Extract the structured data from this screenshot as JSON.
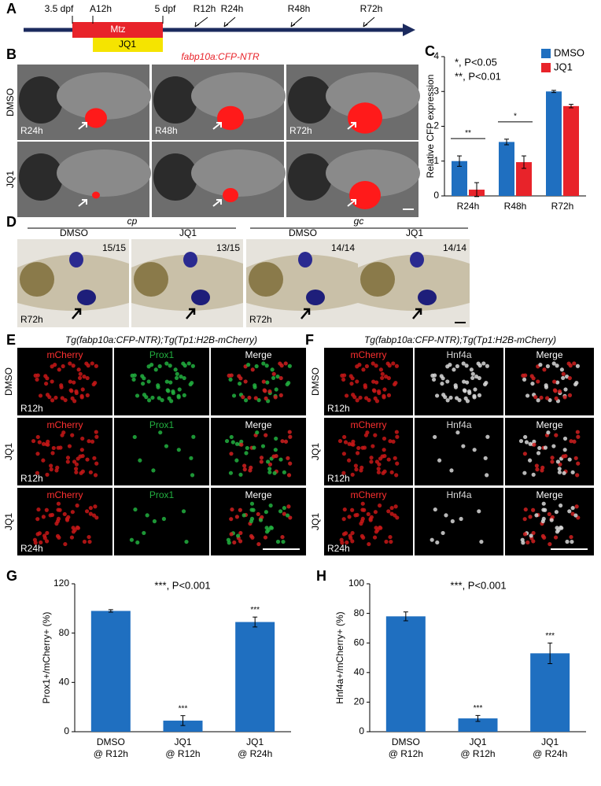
{
  "panel_letters": [
    "A",
    "B",
    "C",
    "D",
    "E",
    "F",
    "G",
    "H"
  ],
  "timeline": {
    "labels": [
      "3.5 dpf",
      "A12h",
      "5 dpf",
      "R12h",
      "R24h",
      "R48h",
      "R72h"
    ],
    "treatments": [
      "Mtz",
      "JQ1"
    ]
  },
  "panel_b": {
    "title": "fabp10a:CFP-NTR",
    "rows": [
      "DMSO",
      "JQ1"
    ],
    "times": [
      "R24h",
      "R48h",
      "R72h"
    ]
  },
  "panel_d": {
    "genes": [
      "cp",
      "gc"
    ],
    "conditions": [
      "DMSO",
      "JQ1",
      "DMSO",
      "JQ1"
    ],
    "counts": [
      "15/15",
      "13/15",
      "14/14",
      "14/14"
    ],
    "time": "R72h"
  },
  "panel_e": {
    "title": "Tg(fabp10a:CFP-NTR);Tg(Tp1:H2B-mCherry)",
    "channels": [
      "mCherry",
      "Prox1",
      "Merge"
    ],
    "rows": [
      "DMSO",
      "JQ1",
      "JQ1"
    ],
    "times": [
      "R12h",
      "R12h",
      "R24h"
    ]
  },
  "panel_f": {
    "title": "Tg(fabp10a:CFP-NTR);Tg(Tp1:H2B-mCherry)",
    "channels": [
      "mCherry",
      "Hnf4a",
      "Merge"
    ],
    "rows": [
      "DMSO",
      "JQ1",
      "JQ1"
    ],
    "times": [
      "R12h",
      "R12h",
      "R24h"
    ]
  },
  "chart_data": [
    {
      "type": "bar",
      "ylabel": "Relative CFP expression",
      "categories": [
        "R24h",
        "R48h",
        "R72h"
      ],
      "series": [
        {
          "name": "DMSO",
          "color": "#1f6fc0",
          "values": [
            1.0,
            1.55,
            3.0
          ],
          "errors": [
            0.15,
            0.08,
            0.03
          ]
        },
        {
          "name": "JQ1",
          "color": "#e8232a",
          "values": [
            0.18,
            0.97,
            2.58
          ],
          "errors": [
            0.2,
            0.18,
            0.05
          ]
        }
      ],
      "significance": [
        "**",
        "*",
        null
      ],
      "annotations": [
        "*, P<0.05",
        "**, P<0.01"
      ],
      "ylim": [
        0,
        4
      ],
      "yticks": [
        0,
        1,
        2,
        3,
        4
      ],
      "legend": "top-right"
    },
    {
      "type": "bar",
      "ylabel": "Prox1+/mCherry+ (%)",
      "categories": [
        [
          "DMSO",
          "@ R12h"
        ],
        [
          "JQ1",
          "@ R12h"
        ],
        [
          "JQ1",
          "@ R24h"
        ]
      ],
      "series": [
        {
          "color": "#1f6fc0",
          "values": [
            98,
            9,
            89
          ],
          "errors": [
            1,
            4,
            4
          ]
        }
      ],
      "value_labels": [
        null,
        "***",
        "***"
      ],
      "annotations": [
        "***, P<0.001"
      ],
      "ylim": [
        0,
        120
      ],
      "yticks": [
        0,
        40,
        80,
        120
      ]
    },
    {
      "type": "bar",
      "ylabel": "Hnf4a+/mCherry+ (%)",
      "categories": [
        [
          "DMSO",
          "@ R12h"
        ],
        [
          "JQ1",
          "@ R12h"
        ],
        [
          "JQ1",
          "@ R24h"
        ]
      ],
      "series": [
        {
          "color": "#1f6fc0",
          "values": [
            78,
            9,
            53
          ],
          "errors": [
            3,
            2,
            7
          ]
        }
      ],
      "value_labels": [
        null,
        "***",
        "***"
      ],
      "annotations": [
        "***, P<0.001"
      ],
      "ylim": [
        0,
        100
      ],
      "yticks": [
        0,
        20,
        40,
        60,
        80,
        100
      ]
    }
  ]
}
